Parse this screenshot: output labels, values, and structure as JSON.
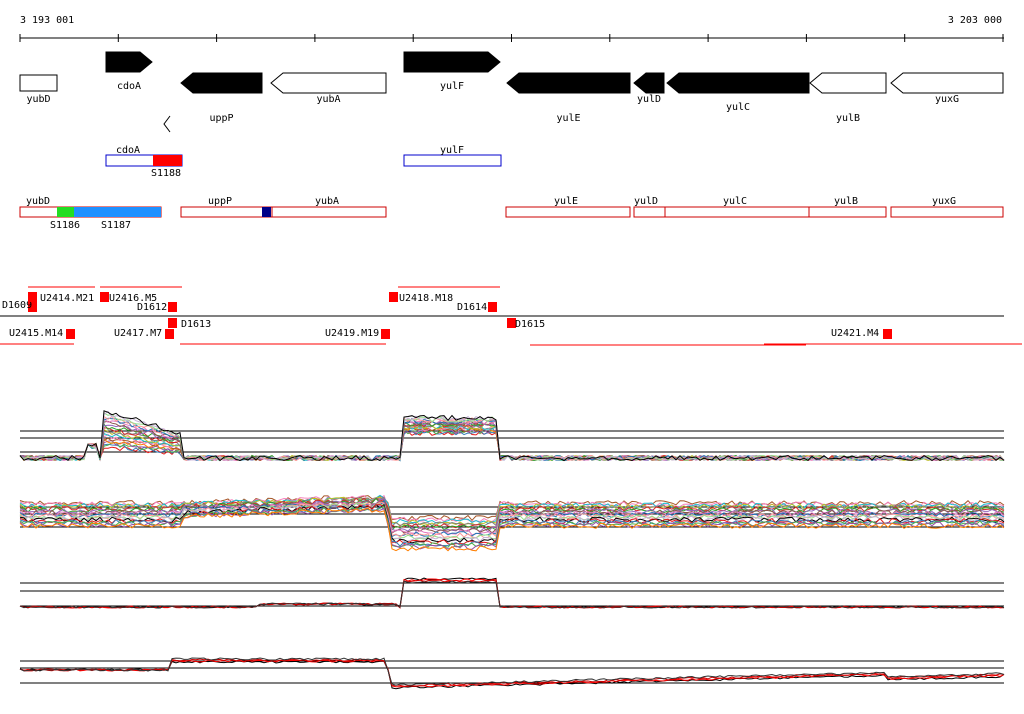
{
  "coords": {
    "start": "3 193 001",
    "end": "3 203 000"
  },
  "genes": [
    {
      "name": "yubD",
      "dir": "+",
      "fill": "white",
      "label": "yubD"
    },
    {
      "name": "cdoA",
      "dir": "+",
      "fill": "black",
      "label": "cdoA"
    },
    {
      "name": "uppP",
      "dir": "-",
      "fill": "black",
      "label": "uppP"
    },
    {
      "name": "yubA",
      "dir": "-",
      "fill": "white",
      "label": "yubA"
    },
    {
      "name": "yulF",
      "dir": "+",
      "fill": "black",
      "label": "yulF"
    },
    {
      "name": "yulE",
      "dir": "-",
      "fill": "black",
      "label": "yulE"
    },
    {
      "name": "yulD",
      "dir": "-",
      "fill": "black",
      "label": "yulD"
    },
    {
      "name": "yulC",
      "dir": "-",
      "fill": "black",
      "label": "yulC"
    },
    {
      "name": "yulB",
      "dir": "-",
      "fill": "white",
      "label": "yulB"
    },
    {
      "name": "yuxG",
      "dir": "-",
      "fill": "white",
      "label": "yuxG"
    }
  ],
  "operons_plus": [
    {
      "label": "cdoA",
      "sig": "S1188"
    },
    {
      "label": "yulF"
    }
  ],
  "operons_minus": [
    {
      "label": "yubD",
      "sigs": [
        "S1186",
        "S1187"
      ]
    },
    {
      "label": "uppP"
    },
    {
      "label": "yubA"
    },
    {
      "label": "yulE"
    },
    {
      "label": "yulD"
    },
    {
      "label": "yulC"
    },
    {
      "label": "yulB"
    },
    {
      "label": "yuxG"
    }
  ],
  "features": [
    {
      "label": "D1609"
    },
    {
      "label": "U2414.M21"
    },
    {
      "label": "U2416.M5"
    },
    {
      "label": "D1612"
    },
    {
      "label": "D1613"
    },
    {
      "label": "U2418.M18"
    },
    {
      "label": "D1614"
    },
    {
      "label": "D1615"
    },
    {
      "label": "U2415.M14"
    },
    {
      "label": "U2417.M7"
    },
    {
      "label": "U2419.M19"
    },
    {
      "label": "U2421.M4"
    }
  ],
  "colors": {
    "operon_plus": "#0000cc",
    "operon_minus": "#cc0000",
    "sigma_red": "#ff0000",
    "sigma_green": "#22dd22",
    "sigma_blue": "#1e90ff",
    "sigma_navy": "#000088"
  }
}
